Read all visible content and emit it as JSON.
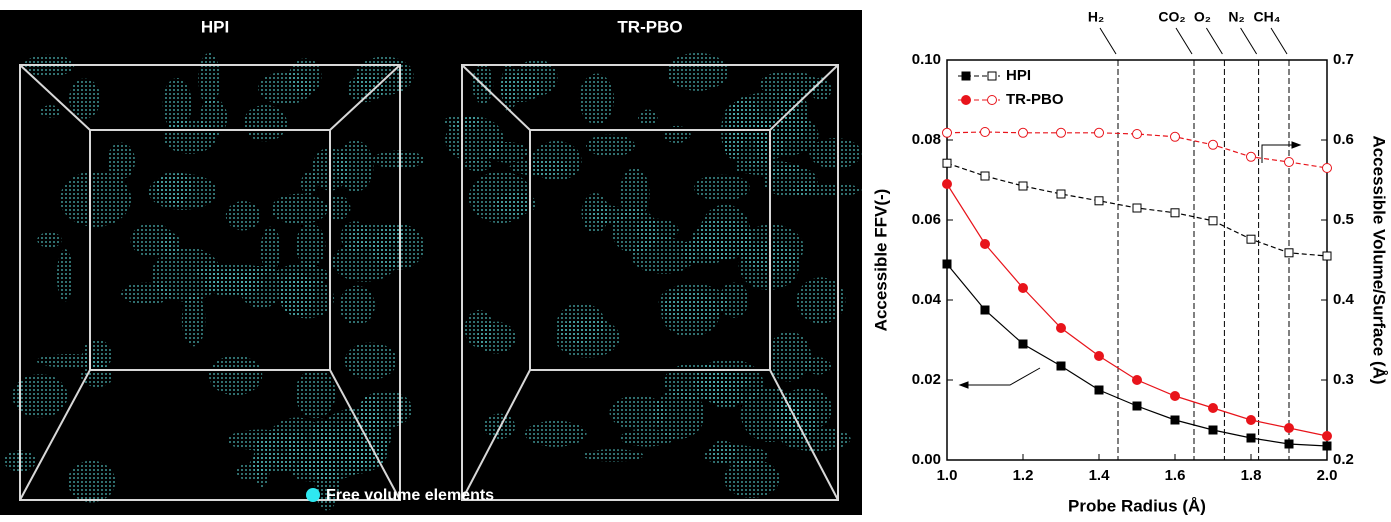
{
  "image_panel": {
    "labels": [
      "HPI",
      "TR-PBO"
    ],
    "legend": "Free volume elements"
  },
  "chart_data": {
    "type": "line",
    "x_label": "Probe Radius (Å)",
    "y_label": "Accessible FFV(-)",
    "y2_label": "Accessible Volume/Surface (Å)",
    "x": [
      1.0,
      1.1,
      1.2,
      1.3,
      1.4,
      1.5,
      1.6,
      1.7,
      1.8,
      1.9,
      2.0
    ],
    "xlim": [
      1.0,
      2.0
    ],
    "xticks": [
      {
        "value": 1.0,
        "label": "1.0"
      },
      {
        "value": 1.2,
        "label": "1.2"
      },
      {
        "value": 1.4,
        "label": "1.4"
      },
      {
        "value": 1.6,
        "label": "1.6"
      },
      {
        "value": 1.8,
        "label": "1.8"
      },
      {
        "value": 2.0,
        "label": "2.0"
      }
    ],
    "ylim": [
      0,
      0.1
    ],
    "yticks": [
      {
        "value": 0,
        "label": "0.00"
      },
      {
        "value": 0.02,
        "label": "0.02"
      },
      {
        "value": 0.04,
        "label": "0.04"
      },
      {
        "value": 0.06,
        "label": "0.06"
      },
      {
        "value": 0.08,
        "label": "0.08"
      },
      {
        "value": 0.1,
        "label": "0.10"
      }
    ],
    "y2lim": [
      0.2,
      0.7
    ],
    "y2ticks": [
      0.2,
      0.3,
      0.4,
      0.5,
      0.6,
      0.7
    ],
    "series": [
      {
        "name": "HPI",
        "color": "#000000",
        "values": [
          0.049,
          0.0375,
          0.029,
          0.0235,
          0.0175,
          0.0135,
          0.01,
          0.0075,
          0.0055,
          0.004,
          0.0035
        ],
        "y2_values": [
          0.571,
          0.555,
          0.5425,
          0.5325,
          0.524,
          0.515,
          0.509,
          0.499,
          0.476,
          0.459,
          0.455
        ]
      },
      {
        "name": "TR-PBO",
        "color": "#e8141b",
        "values": [
          0.069,
          0.054,
          0.043,
          0.033,
          0.026,
          0.02,
          0.016,
          0.013,
          0.01,
          0.008,
          0.006
        ],
        "y2_values": [
          0.609,
          0.61,
          0.609,
          0.609,
          0.609,
          0.6075,
          0.604,
          0.594,
          0.579,
          0.5725,
          0.565
        ]
      }
    ],
    "markers": [
      {
        "label": "H₂",
        "x": 1.45
      },
      {
        "label": "CO₂",
        "x": 1.65
      },
      {
        "label": "O₂",
        "x": 1.73
      },
      {
        "label": "N₂",
        "x": 1.82
      },
      {
        "label": "CH₄",
        "x": 1.9
      }
    ]
  }
}
